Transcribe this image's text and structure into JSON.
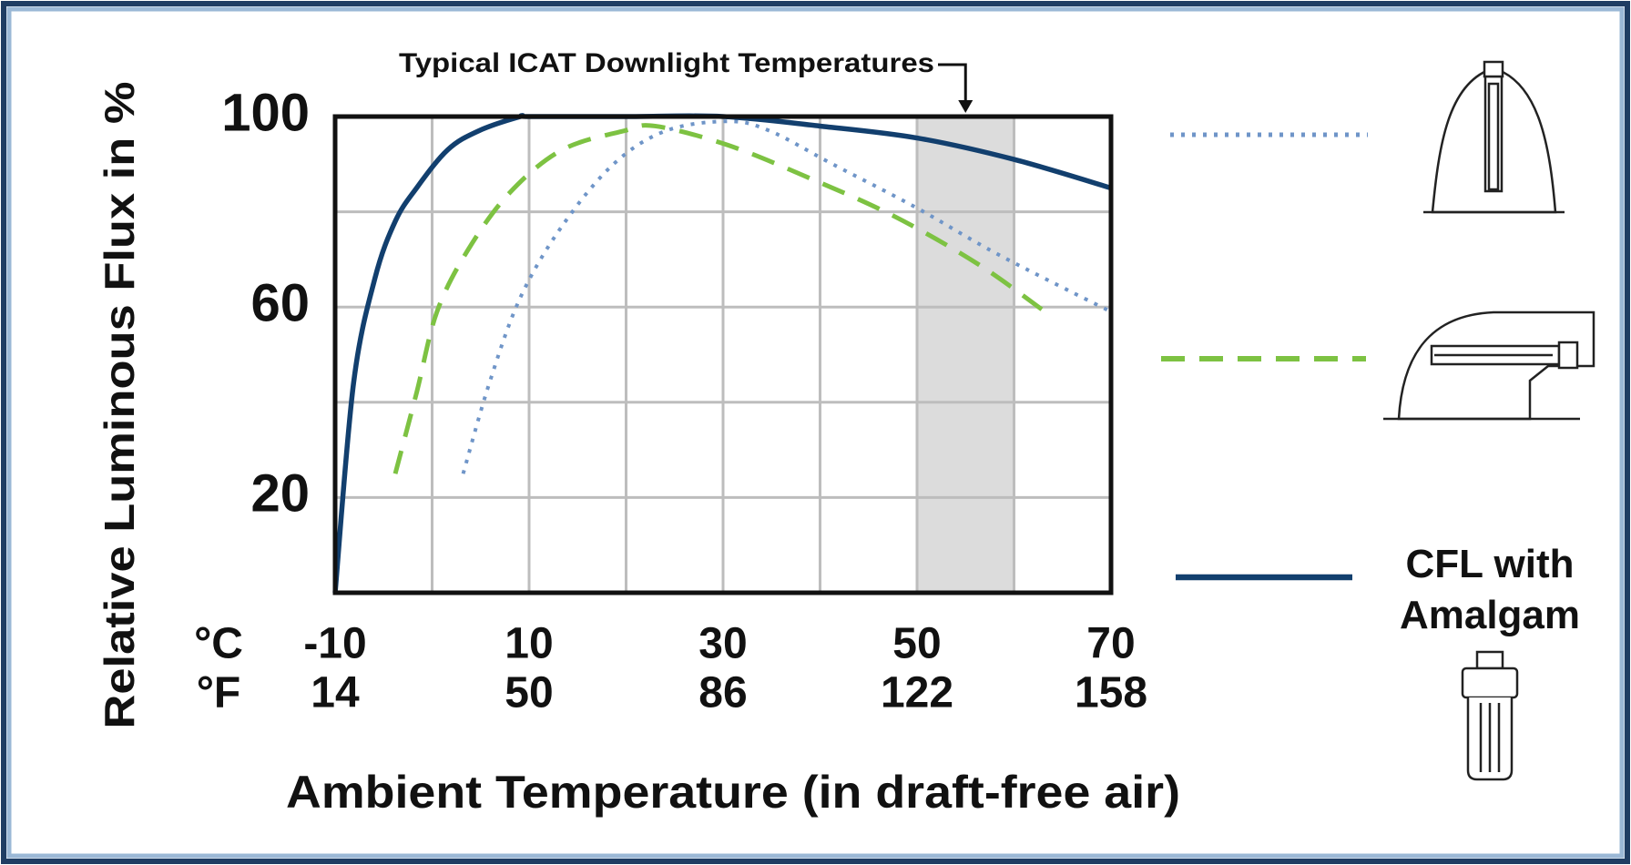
{
  "chart_data": {
    "type": "line",
    "ylabel": "Relative Luminous Flux in %",
    "xlabel": "Ambient Temperature (in draft-free air)",
    "xlim": [
      -10,
      70
    ],
    "ylim": [
      0,
      100
    ],
    "xticks": [
      -10,
      {
        "value": 0,
        "label": null
      },
      10,
      {
        "value": 20,
        "label": null
      },
      30,
      {
        "value": 40,
        "label": null
      },
      50,
      {
        "value": 60,
        "label": null
      },
      70
    ],
    "xticks_f": [
      14,
      null,
      50,
      null,
      86,
      null,
      122,
      null,
      158
    ],
    "xtick_units": [
      "°C",
      "°F"
    ],
    "yticks": [
      {
        "value": 0,
        "label": null
      },
      20,
      {
        "value": 40,
        "label": null
      },
      60,
      {
        "value": 80,
        "label": null
      },
      100
    ],
    "grid": true,
    "annotation": {
      "text": "Typical ICAT Downlight Temperatures",
      "xrange": [
        50,
        60
      ]
    },
    "series": [
      {
        "color": "#6f95c8",
        "dash": "dotted",
        "x": [
          3.2,
          5.9,
          9.1,
          13.4,
          18.7,
          24.1,
          30.5,
          34.8,
          41.3,
          49.8,
          58.4,
          70
        ],
        "values": [
          25,
          44,
          62,
          77,
          90,
          97,
          99,
          97,
          90,
          81,
          71,
          59
        ]
      },
      {
        "color": "#7dc242",
        "dash": "dashed",
        "x": [
          -3.8,
          -1.6,
          0.5,
          3.7,
          8,
          13.4,
          19.8,
          23,
          30.5,
          39,
          47.7,
          56.3,
          63.2
        ],
        "values": [
          25,
          42,
          59,
          72,
          84,
          93,
          97,
          98,
          94,
          87,
          79,
          69,
          59
        ]
      },
      {
        "name": "CFL with Amalgam",
        "color": "#123f6e",
        "dash": "solid",
        "x": [
          -10,
          -8.1,
          -5.9,
          -3.8,
          -1.6,
          1.6,
          4.8,
          9.1,
          10,
          20,
          30,
          40,
          50,
          60,
          70
        ],
        "values": [
          0,
          44,
          66,
          78,
          85,
          93,
          97,
          100,
          100,
          100,
          100,
          98,
          95.5,
          91,
          85
        ]
      }
    ]
  }
}
